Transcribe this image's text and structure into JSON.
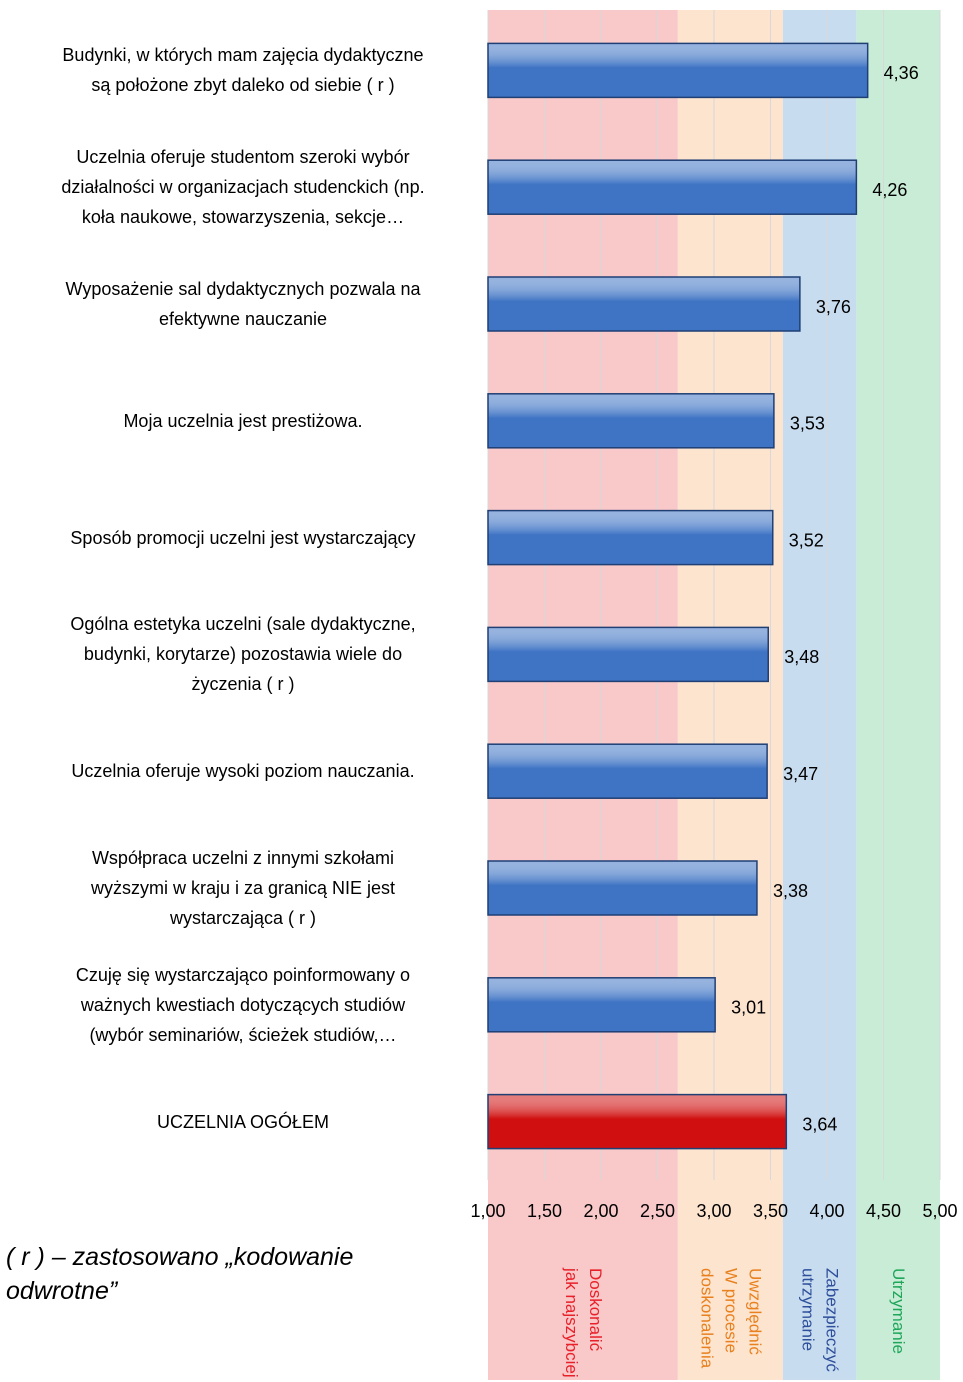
{
  "chart_data": {
    "type": "bar",
    "orientation": "horizontal",
    "categories": [
      "Budynki, w których mam zajęcia dydaktyczne\nsą położone zbyt daleko od siebie ( r )",
      "Uczelnia oferuje studentom szeroki wybór\ndziałalności w organizacjach studenckich (np.\nkoła naukowe, stowarzyszenia, sekcje…",
      "Wyposażenie sal dydaktycznych pozwala na\nefektywne nauczanie",
      "Moja uczelnia jest prestiżowa.",
      "Sposób promocji uczelni jest wystarczający",
      "Ogólna estetyka uczelni (sale dydaktyczne,\nbudynki, korytarze) pozostawia wiele do\nżyczenia ( r )",
      "Uczelnia oferuje wysoki poziom nauczania.",
      "Współpraca uczelni z innymi szkołami\nwyższymi w kraju i za granicą NIE jest\nwystarczająca ( r )",
      "Czuję się wystarczająco poinformowany o\nważnych kwestiach dotyczących studiów\n(wybór seminariów, ścieżek studiów,…",
      "UCZELNIA OGÓŁEM"
    ],
    "values": [
      4.36,
      4.26,
      3.76,
      3.53,
      3.52,
      3.48,
      3.47,
      3.38,
      3.01,
      3.64
    ],
    "value_labels": [
      "4,36",
      "4,26",
      "3,76",
      "3,53",
      "3,52",
      "3,48",
      "3,47",
      "3,38",
      "3,01",
      "3,64"
    ],
    "colors": [
      "#3f74c4",
      "#3f74c4",
      "#3f74c4",
      "#3f74c4",
      "#3f74c4",
      "#3f74c4",
      "#3f74c4",
      "#3f74c4",
      "#3f74c4",
      "#d01010"
    ],
    "xlim": [
      1,
      5
    ],
    "xticks": [
      {
        "value": 1,
        "label": "1,00"
      },
      {
        "value": 1.5,
        "label": "1,50"
      },
      {
        "value": 2,
        "label": "2,00"
      },
      {
        "value": 2.5,
        "label": "2,50"
      },
      {
        "value": 3,
        "label": "3,00"
      },
      {
        "value": 3.5,
        "label": "3,50"
      },
      {
        "value": 4,
        "label": "4,00"
      },
      {
        "value": 4.5,
        "label": "4,50"
      },
      {
        "value": 5,
        "label": "5,00"
      }
    ],
    "grid": true,
    "bands": [
      {
        "label": "Doskonalić\njak najszybciej",
        "from": 1,
        "to": 2.68,
        "color": "#f9c8c8",
        "text_color": "#e8202a"
      },
      {
        "label": "Uwzględnić\nW procesie\ndoskonalenia",
        "from": 2.68,
        "to": 3.61,
        "color": "#fde4cf",
        "text_color": "#e8801e"
      },
      {
        "label": "Zabezpieczyć\nutrzymanie",
        "from": 3.61,
        "to": 4.26,
        "color": "#c8dcf0",
        "text_color": "#2e4f9a"
      },
      {
        "label": "Utrzymanie",
        "from": 4.26,
        "to": 5,
        "color": "#c9ecd6",
        "text_color": "#1fa65a"
      }
    ],
    "note": "( r ) – zastosowano „kodowanie\nodwrotne”"
  }
}
